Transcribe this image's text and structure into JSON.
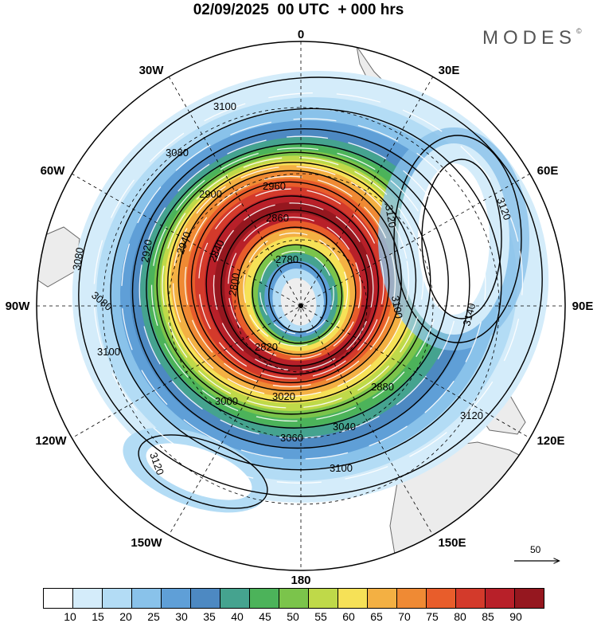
{
  "header": {
    "title": "02/09/2025  00 UTC  + 000 hrs",
    "brand": "MODES",
    "brand_mark": "©"
  },
  "map": {
    "projection": "south-polar-stereographic",
    "longitude_labels": [
      {
        "text": "0",
        "lon": 0
      },
      {
        "text": "30E",
        "lon": 30
      },
      {
        "text": "60E",
        "lon": 60
      },
      {
        "text": "90E",
        "lon": 90
      },
      {
        "text": "120E",
        "lon": 120
      },
      {
        "text": "150E",
        "lon": 150
      },
      {
        "text": "180",
        "lon": 180
      },
      {
        "text": "150W",
        "lon": -150
      },
      {
        "text": "120W",
        "lon": -120
      },
      {
        "text": "90W",
        "lon": -90
      },
      {
        "text": "60W",
        "lon": -60
      },
      {
        "text": "30W",
        "lon": -30
      }
    ],
    "contour_labels": [
      "2780",
      "2800",
      "2820",
      "2840",
      "2860",
      "2880",
      "2900",
      "2920",
      "2940",
      "2960",
      "3000",
      "3020",
      "3040",
      "3060",
      "3080",
      "3100",
      "3120",
      "3140"
    ],
    "reference_vector": "50",
    "colors": {
      "land": "#ececec",
      "coast": "#6a6a6a",
      "contour": "#000000",
      "streamline": "#ffffff"
    }
  },
  "colorbar": {
    "labels": [
      "10",
      "15",
      "20",
      "25",
      "30",
      "35",
      "40",
      "45",
      "50",
      "55",
      "60",
      "65",
      "70",
      "75",
      "80",
      "85",
      "90"
    ],
    "colors": [
      "#ffffff",
      "#d4ecfa",
      "#b3dcf5",
      "#89c2ea",
      "#5f9fd7",
      "#4d89c2",
      "#45a38f",
      "#4cb35a",
      "#7bc44b",
      "#bfd949",
      "#f6e157",
      "#f3b043",
      "#ef8a34",
      "#e85d2b",
      "#d33a2b",
      "#b82029",
      "#95171f"
    ]
  }
}
